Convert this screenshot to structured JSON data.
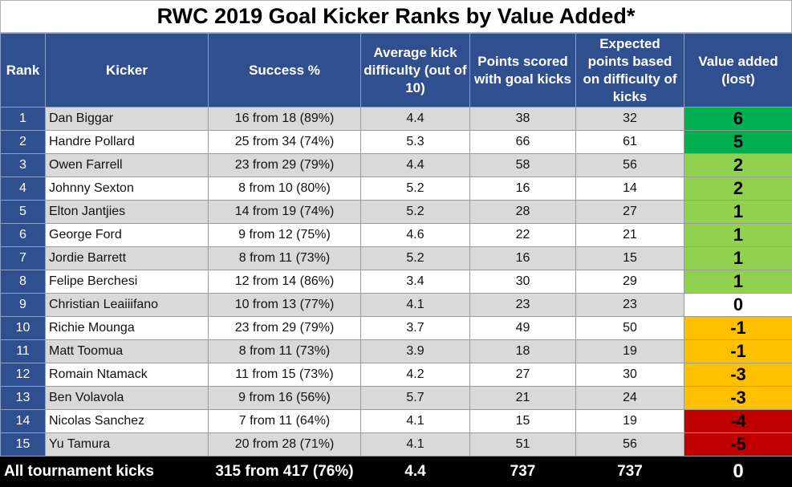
{
  "title": "RWC 2019 Goal Kicker Ranks by Value Added*",
  "colors": {
    "header_bg": "#2f4f8f",
    "value_high": "#00b050",
    "value_positive": "#92d050",
    "value_zero": "#ffffff",
    "value_negative": "#ffc000",
    "value_very_negative": "#c00000"
  },
  "headers": {
    "rank": "Rank",
    "kicker": "Kicker",
    "success": "Success %",
    "difficulty": "Average kick difficulty (out of 10)",
    "points": "Points scored with goal kicks",
    "expected": "Expected points based on difficulty of kicks",
    "value_added": "Value added (lost)"
  },
  "chart_data": {
    "type": "table",
    "title": "RWC 2019 Goal Kicker Ranks by Value Added*",
    "columns": [
      "Rank",
      "Kicker",
      "Success %",
      "Average kick difficulty (out of 10)",
      "Points scored with goal kicks",
      "Expected points based on difficulty of kicks",
      "Value added (lost)"
    ],
    "rows": [
      {
        "rank": "1",
        "kicker": "Dan Biggar",
        "success": "16 from 18 (89%)",
        "difficulty": "4.4",
        "points": "38",
        "expected": "32",
        "value": "6",
        "value_num": 6
      },
      {
        "rank": "2",
        "kicker": "Handre Pollard",
        "success": "25 from 34 (74%)",
        "difficulty": "5.3",
        "points": "66",
        "expected": "61",
        "value": "5",
        "value_num": 5
      },
      {
        "rank": "3",
        "kicker": "Owen Farrell",
        "success": "23 from 29 (79%)",
        "difficulty": "4.4",
        "points": "58",
        "expected": "56",
        "value": "2",
        "value_num": 2
      },
      {
        "rank": "4",
        "kicker": "Johnny Sexton",
        "success": "8 from 10 (80%)",
        "difficulty": "5.2",
        "points": "16",
        "expected": "14",
        "value": "2",
        "value_num": 2
      },
      {
        "rank": "5",
        "kicker": "Elton Jantjies",
        "success": "14 from 19 (74%)",
        "difficulty": "5.2",
        "points": "28",
        "expected": "27",
        "value": "1",
        "value_num": 1
      },
      {
        "rank": "6",
        "kicker": "George Ford",
        "success": "9 from 12 (75%)",
        "difficulty": "4.6",
        "points": "22",
        "expected": "21",
        "value": "1",
        "value_num": 1
      },
      {
        "rank": "7",
        "kicker": "Jordie Barrett",
        "success": "8 from 11 (73%)",
        "difficulty": "5.2",
        "points": "16",
        "expected": "15",
        "value": "1",
        "value_num": 1
      },
      {
        "rank": "8",
        "kicker": "Felipe Berchesi",
        "success": "12 from 14 (86%)",
        "difficulty": "3.4",
        "points": "30",
        "expected": "29",
        "value": "1",
        "value_num": 1
      },
      {
        "rank": "9",
        "kicker": "Christian Leaiiifano",
        "success": "10 from 13 (77%)",
        "difficulty": "4.1",
        "points": "23",
        "expected": "23",
        "value": "0",
        "value_num": 0
      },
      {
        "rank": "10",
        "kicker": "Richie Mounga",
        "success": "23 from 29 (79%)",
        "difficulty": "3.7",
        "points": "49",
        "expected": "50",
        "value": "-1",
        "value_num": -1
      },
      {
        "rank": "11",
        "kicker": "Matt Toomua",
        "success": "8 from 11 (73%)",
        "difficulty": "3.9",
        "points": "18",
        "expected": "19",
        "value": "-1",
        "value_num": -1
      },
      {
        "rank": "12",
        "kicker": "Romain Ntamack",
        "success": "11 from 15 (73%)",
        "difficulty": "4.2",
        "points": "27",
        "expected": "30",
        "value": "-3",
        "value_num": -3
      },
      {
        "rank": "13",
        "kicker": "Ben Volavola",
        "success": "9 from 16 (56%)",
        "difficulty": "5.7",
        "points": "21",
        "expected": "24",
        "value": "-3",
        "value_num": -3
      },
      {
        "rank": "14",
        "kicker": "Nicolas Sanchez",
        "success": "7 from 11 (64%)",
        "difficulty": "4.1",
        "points": "15",
        "expected": "19",
        "value": "-4",
        "value_num": -4
      },
      {
        "rank": "15",
        "kicker": "Yu Tamura",
        "success": "20 from 28 (71%)",
        "difficulty": "4.1",
        "points": "51",
        "expected": "56",
        "value": "-5",
        "value_num": -5
      }
    ],
    "total": {
      "label": "All tournament kicks",
      "success": "315 from 417 (76%)",
      "difficulty": "4.4",
      "points": "737",
      "expected": "737",
      "value": "0"
    }
  }
}
